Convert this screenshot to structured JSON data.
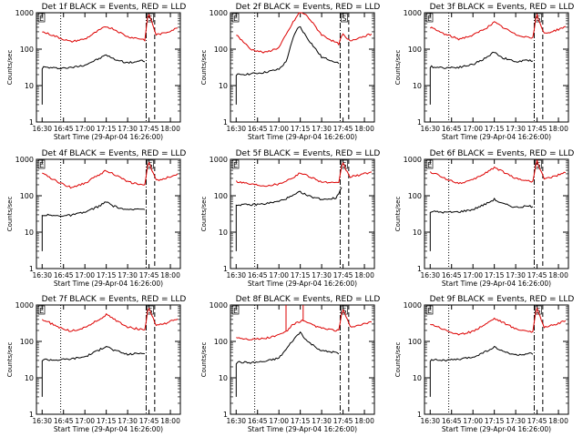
{
  "xlabel": "Start Time (29-Apr-04 16:26:00)",
  "ylabel": "Counts/sec",
  "x_ticks": [
    "16:30",
    "16:45",
    "17:00",
    "17:15",
    "17:30",
    "17:45",
    "18:00"
  ],
  "y_ticks": [
    "1",
    "10",
    "100",
    "1000"
  ],
  "colors": {
    "events": "#000000",
    "lld": "#dd0000",
    "axes": "#000000"
  },
  "chart_data": [
    {
      "type": "line",
      "title": "Det 1f BLACK = Events, RED = LLD",
      "corner_labels": [
        "E",
        "S"
      ],
      "xlim": [
        "16:26",
        "18:07"
      ],
      "ylim": [
        1,
        1000
      ],
      "yscale": "log",
      "vlines": [
        {
          "x": "16:43",
          "style": "dotted"
        },
        {
          "x": "17:43",
          "style": "dash-dot"
        },
        {
          "x": "17:49",
          "style": "dashed"
        }
      ],
      "series": [
        {
          "name": "Events",
          "x": [
            "16:30",
            "16:30",
            "16:31",
            "16:40",
            "16:50",
            "17:00",
            "17:10",
            "17:15",
            "17:20",
            "17:30",
            "17:40",
            "17:42",
            "17:42",
            "17:43"
          ],
          "y": [
            3,
            30,
            32,
            30,
            31,
            37,
            55,
            70,
            54,
            42,
            48,
            45,
            null,
            null
          ]
        },
        {
          "name": "LLD",
          "x": [
            "16:30",
            "16:35",
            "16:40",
            "16:50",
            "17:00",
            "17:10",
            "17:15",
            "17:20",
            "17:30",
            "17:40",
            "17:42",
            "17:44",
            "17:45",
            "17:47",
            "17:50",
            "17:55",
            "18:00",
            "18:05"
          ],
          "y": [
            300,
            260,
            220,
            160,
            190,
            330,
            420,
            360,
            220,
            190,
            180,
            700,
            900,
            550,
            250,
            270,
            320,
            380
          ]
        }
      ]
    },
    {
      "type": "line",
      "title": "Det 2f BLACK = Events, RED = LLD",
      "corner_labels": [
        "E",
        "S"
      ],
      "xlim": [
        "16:26",
        "18:07"
      ],
      "ylim": [
        1,
        1000
      ],
      "yscale": "log",
      "vlines": [
        {
          "x": "16:43",
          "style": "dotted"
        },
        {
          "x": "17:43",
          "style": "dash-dot"
        },
        {
          "x": "17:49",
          "style": "dashed"
        }
      ],
      "series": [
        {
          "name": "Events",
          "x": [
            "16:30",
            "16:30",
            "16:31",
            "16:40",
            "16:50",
            "17:00",
            "17:05",
            "17:10",
            "17:13",
            "17:15",
            "17:20",
            "17:30",
            "17:40",
            "17:42"
          ],
          "y": [
            3,
            18,
            20,
            21,
            23,
            28,
            45,
            200,
            380,
            400,
            200,
            60,
            45,
            40
          ]
        },
        {
          "name": "LLD",
          "x": [
            "16:30",
            "16:35",
            "16:40",
            "16:50",
            "17:00",
            "17:10",
            "17:15",
            "17:20",
            "17:30",
            "17:40",
            "17:42",
            "17:44",
            "17:45",
            "17:47",
            "17:50",
            "17:55",
            "18:00",
            "18:05"
          ],
          "y": [
            250,
            160,
            100,
            80,
            110,
            550,
            1100,
            800,
            250,
            150,
            140,
            220,
            260,
            200,
            170,
            200,
            230,
            260
          ]
        }
      ]
    },
    {
      "type": "line",
      "title": "Det 3f BLACK = Events, RED = LLD",
      "corner_labels": [
        "E",
        "S"
      ],
      "xlim": [
        "16:26",
        "18:07"
      ],
      "ylim": [
        1,
        1000
      ],
      "yscale": "log",
      "vlines": [
        {
          "x": "16:43",
          "style": "dotted"
        },
        {
          "x": "17:43",
          "style": "dash-dot"
        },
        {
          "x": "17:49",
          "style": "dashed"
        }
      ],
      "series": [
        {
          "name": "Events",
          "x": [
            "16:30",
            "16:30",
            "16:31",
            "16:40",
            "16:50",
            "17:00",
            "17:10",
            "17:15",
            "17:20",
            "17:30",
            "17:40",
            "17:42"
          ],
          "y": [
            3,
            30,
            33,
            31,
            32,
            38,
            60,
            85,
            60,
            45,
            50,
            47
          ]
        },
        {
          "name": "LLD",
          "x": [
            "16:30",
            "16:35",
            "16:40",
            "16:50",
            "17:00",
            "17:10",
            "17:15",
            "17:20",
            "17:30",
            "17:40",
            "17:42",
            "17:44",
            "17:45",
            "17:47",
            "17:50",
            "17:55",
            "18:00",
            "18:05"
          ],
          "y": [
            400,
            320,
            260,
            190,
            240,
            400,
            550,
            420,
            250,
            210,
            200,
            650,
            850,
            500,
            270,
            300,
            350,
            420
          ]
        }
      ]
    },
    {
      "type": "line",
      "title": "Det 4f BLACK = Events, RED = LLD",
      "corner_labels": [
        "E",
        "S"
      ],
      "xlim": [
        "16:26",
        "18:07"
      ],
      "ylim": [
        1,
        1000
      ],
      "yscale": "log",
      "vlines": [
        {
          "x": "16:43",
          "style": "dotted"
        },
        {
          "x": "17:43",
          "style": "dash-dot"
        },
        {
          "x": "17:49",
          "style": "dashed"
        }
      ],
      "series": [
        {
          "name": "Events",
          "x": [
            "16:30",
            "16:30",
            "16:31",
            "16:40",
            "16:50",
            "17:00",
            "17:10",
            "17:15",
            "17:20",
            "17:30",
            "17:40",
            "17:42"
          ],
          "y": [
            3,
            28,
            30,
            28,
            29,
            35,
            52,
            68,
            52,
            40,
            45,
            42
          ]
        },
        {
          "name": "LLD",
          "x": [
            "16:30",
            "16:35",
            "16:40",
            "16:50",
            "17:00",
            "17:10",
            "17:15",
            "17:20",
            "17:30",
            "17:40",
            "17:42",
            "17:44",
            "17:45",
            "17:47",
            "17:50",
            "17:55",
            "18:00",
            "18:05"
          ],
          "y": [
            400,
            330,
            250,
            170,
            220,
            380,
            500,
            400,
            240,
            200,
            190,
            650,
            850,
            520,
            260,
            290,
            340,
            400
          ]
        }
      ]
    },
    {
      "type": "line",
      "title": "Det 5f BLACK = Events, RED = LLD",
      "corner_labels": [
        "E",
        "S"
      ],
      "xlim": [
        "16:26",
        "18:07"
      ],
      "ylim": [
        1,
        1000
      ],
      "yscale": "log",
      "vlines": [
        {
          "x": "16:43",
          "style": "dotted"
        },
        {
          "x": "17:43",
          "style": "dash-dot"
        },
        {
          "x": "17:49",
          "style": "dashed"
        }
      ],
      "series": [
        {
          "name": "Events",
          "x": [
            "16:30",
            "16:30",
            "16:31",
            "16:40",
            "16:50",
            "17:00",
            "17:10",
            "17:15",
            "17:20",
            "17:30",
            "17:40",
            "17:42",
            "17:44"
          ],
          "y": [
            3,
            55,
            57,
            56,
            60,
            70,
            100,
            130,
            100,
            80,
            85,
            120,
            170
          ]
        },
        {
          "name": "LLD",
          "x": [
            "16:30",
            "16:35",
            "16:40",
            "16:50",
            "17:00",
            "17:10",
            "17:15",
            "17:20",
            "17:30",
            "17:40",
            "17:42",
            "17:44",
            "17:45",
            "17:47",
            "17:50",
            "17:55",
            "18:00",
            "18:05"
          ],
          "y": [
            250,
            230,
            210,
            190,
            210,
            320,
            420,
            360,
            240,
            220,
            220,
            650,
            800,
            520,
            330,
            360,
            400,
            450
          ]
        }
      ]
    },
    {
      "type": "line",
      "title": "Det 6f BLACK = Events, RED = LLD",
      "corner_labels": [
        "E",
        "S"
      ],
      "xlim": [
        "16:26",
        "18:07"
      ],
      "ylim": [
        1,
        1000
      ],
      "yscale": "log",
      "vlines": [
        {
          "x": "16:43",
          "style": "dotted"
        },
        {
          "x": "17:43",
          "style": "dash-dot"
        },
        {
          "x": "17:49",
          "style": "dashed"
        }
      ],
      "series": [
        {
          "name": "Events",
          "x": [
            "16:30",
            "16:30",
            "16:31",
            "16:40",
            "16:50",
            "17:00",
            "17:10",
            "17:15",
            "17:20",
            "17:30",
            "17:40",
            "17:42"
          ],
          "y": [
            3,
            35,
            37,
            35,
            36,
            42,
            62,
            80,
            62,
            48,
            52,
            50
          ]
        },
        {
          "name": "LLD",
          "x": [
            "16:30",
            "16:35",
            "16:40",
            "16:50",
            "17:00",
            "17:10",
            "17:15",
            "17:20",
            "17:30",
            "17:40",
            "17:42",
            "17:44",
            "17:45",
            "17:47",
            "17:50",
            "17:55",
            "18:00",
            "18:05"
          ],
          "y": [
            450,
            380,
            300,
            220,
            270,
            450,
            600,
            480,
            300,
            250,
            240,
            700,
            900,
            550,
            290,
            320,
            370,
            430
          ]
        }
      ]
    },
    {
      "type": "line",
      "title": "Det 7f BLACK = Events, RED = LLD",
      "corner_labels": [
        "E",
        "S"
      ],
      "xlim": [
        "16:26",
        "18:07"
      ],
      "ylim": [
        1,
        1000
      ],
      "yscale": "log",
      "vlines": [
        {
          "x": "16:43",
          "style": "dotted"
        },
        {
          "x": "17:43",
          "style": "dash-dot"
        },
        {
          "x": "17:49",
          "style": "dashed"
        }
      ],
      "series": [
        {
          "name": "Events",
          "x": [
            "16:30",
            "16:30",
            "16:31",
            "16:40",
            "16:50",
            "17:00",
            "17:10",
            "17:15",
            "17:20",
            "17:30",
            "17:40",
            "17:42"
          ],
          "y": [
            3,
            30,
            32,
            31,
            33,
            38,
            58,
            75,
            58,
            44,
            48,
            46
          ]
        },
        {
          "name": "LLD",
          "x": [
            "16:30",
            "16:35",
            "16:40",
            "16:50",
            "17:00",
            "17:10",
            "17:15",
            "17:20",
            "17:30",
            "17:40",
            "17:42",
            "17:44",
            "17:45",
            "17:47",
            "17:50",
            "17:55",
            "18:00",
            "18:05"
          ],
          "y": [
            400,
            330,
            260,
            190,
            240,
            400,
            540,
            420,
            250,
            210,
            200,
            650,
            850,
            520,
            270,
            300,
            350,
            410
          ]
        }
      ]
    },
    {
      "type": "line",
      "title": "Det 8f BLACK = Events, RED = LLD",
      "corner_labels": [
        "E",
        "S"
      ],
      "xlim": [
        "16:26",
        "18:07"
      ],
      "ylim": [
        1,
        1000
      ],
      "yscale": "log",
      "vlines": [
        {
          "x": "16:43",
          "style": "dotted"
        },
        {
          "x": "17:43",
          "style": "dash-dot"
        },
        {
          "x": "17:49",
          "style": "dashed"
        }
      ],
      "series": [
        {
          "name": "Events",
          "x": [
            "16:30",
            "16:30",
            "16:31",
            "16:40",
            "16:50",
            "17:00",
            "17:05",
            "17:10",
            "17:15",
            "17:20",
            "17:30",
            "17:40",
            "17:42"
          ],
          "y": [
            3,
            25,
            27,
            26,
            28,
            35,
            60,
            110,
            180,
            100,
            55,
            50,
            45
          ]
        },
        {
          "name": "LLD",
          "x": [
            "16:30",
            "16:35",
            "16:40",
            "16:50",
            "17:00",
            "17:05",
            "17:05",
            "17:05",
            "17:06",
            "17:10",
            "17:15",
            "17:17",
            "17:17",
            "17:17",
            "17:18",
            "17:20",
            "17:30",
            "17:40",
            "17:42",
            "17:44",
            "17:45",
            "17:47",
            "17:50",
            "17:55",
            "18:00",
            "18:05"
          ],
          "y": [
            130,
            120,
            115,
            120,
            150,
            190,
            1000,
            190,
            200,
            300,
            350,
            380,
            1000,
            380,
            350,
            320,
            230,
            200,
            200,
            550,
            750,
            480,
            250,
            270,
            300,
            340
          ]
        }
      ]
    },
    {
      "type": "line",
      "title": "Det 9f BLACK = Events, RED = LLD",
      "corner_labels": [
        "E",
        "S"
      ],
      "xlim": [
        "16:26",
        "18:07"
      ],
      "ylim": [
        1,
        1000
      ],
      "yscale": "log",
      "vlines": [
        {
          "x": "16:43",
          "style": "dotted"
        },
        {
          "x": "17:43",
          "style": "dash-dot"
        },
        {
          "x": "17:49",
          "style": "dashed"
        }
      ],
      "series": [
        {
          "name": "Events",
          "x": [
            "16:30",
            "16:30",
            "16:31",
            "16:40",
            "16:50",
            "17:00",
            "17:10",
            "17:15",
            "17:20",
            "17:30",
            "17:40",
            "17:42"
          ],
          "y": [
            3,
            30,
            32,
            30,
            32,
            37,
            55,
            70,
            55,
            42,
            46,
            44
          ]
        },
        {
          "name": "LLD",
          "x": [
            "16:30",
            "16:35",
            "16:40",
            "16:50",
            "17:00",
            "17:10",
            "17:15",
            "17:20",
            "17:30",
            "17:40",
            "17:42",
            "17:44",
            "17:45",
            "17:47",
            "17:50",
            "17:55",
            "18:00",
            "18:05"
          ],
          "y": [
            300,
            260,
            210,
            150,
            190,
            320,
            430,
            350,
            220,
            190,
            180,
            600,
            800,
            500,
            250,
            270,
            310,
            370
          ]
        }
      ]
    }
  ]
}
